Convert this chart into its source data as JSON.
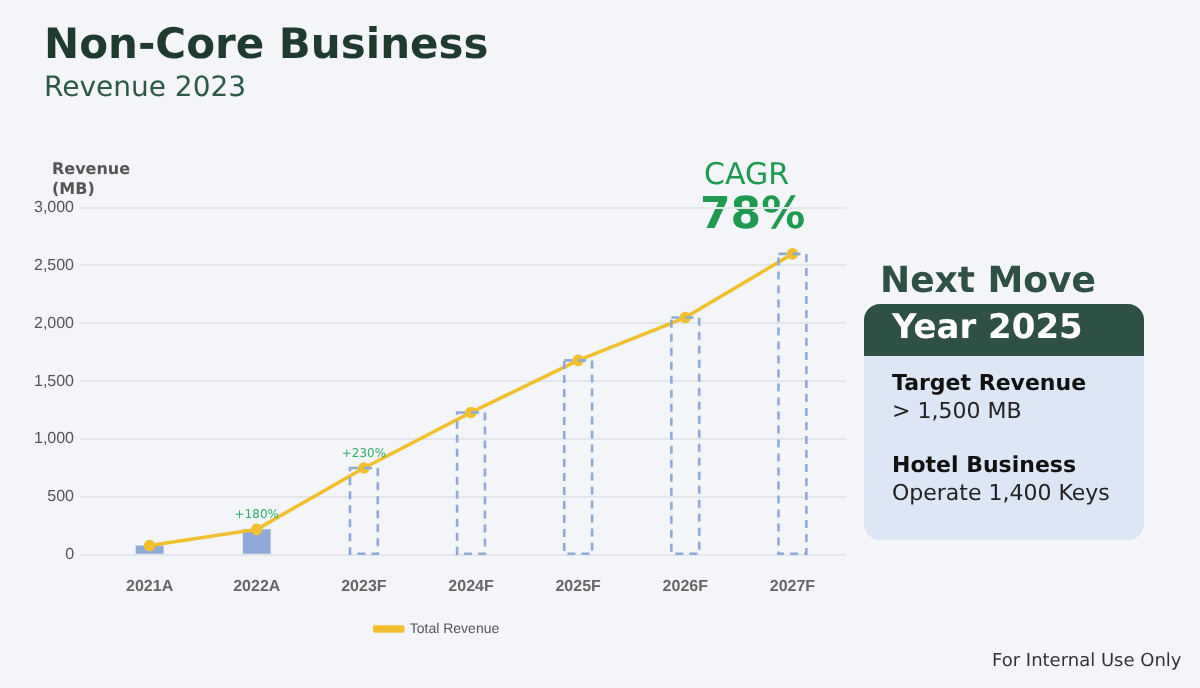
{
  "chart_data": {
    "type": "bar",
    "title": "Non-Core Business",
    "subtitle": "Revenue 2023",
    "ylabel": "Revenue (MB)",
    "categories": [
      "2021A",
      "2022A",
      "2023F",
      "2024F",
      "2025F",
      "2026F",
      "2027F"
    ],
    "series": [
      {
        "color": "#8faad6",
        "values": [
          80,
          220,
          null,
          null,
          null,
          null,
          null
        ]
      },
      {
        "color": "#8faad6",
        "line_style": "dashed",
        "values": [
          null,
          null,
          750,
          1230,
          1680,
          2050,
          2600
        ]
      },
      {
        "type": "line",
        "name": "Total Revenue",
        "color": "#f2bf2f",
        "marker": "circle",
        "values": [
          80,
          220,
          750,
          1230,
          1680,
          2050,
          2600
        ]
      }
    ],
    "ylim": [
      0,
      3000
    ],
    "yticks": [
      {
        "value": 0,
        "label": "0"
      },
      {
        "value": 500,
        "label": "500"
      },
      {
        "value": 1000,
        "label": "1,000"
      },
      {
        "value": 1500,
        "label": "1,500"
      },
      {
        "value": 2000,
        "label": "2,000"
      },
      {
        "value": 2500,
        "label": "2,500"
      },
      {
        "value": 3000,
        "label": "3,000"
      }
    ],
    "grid": "y",
    "legend": "bottom",
    "annotations": [
      {
        "text": "+180%",
        "x": "2022A",
        "y": 220
      },
      {
        "text": "+230%",
        "x": "2023F",
        "y": 750
      },
      "CAGR",
      "78%",
      "Next Move",
      "Year 2025",
      "Target Revenue",
      "> 1,500 MB",
      "Hotel Business",
      "Operate 1,400 Keys",
      "For Internal Use Only"
    ]
  }
}
